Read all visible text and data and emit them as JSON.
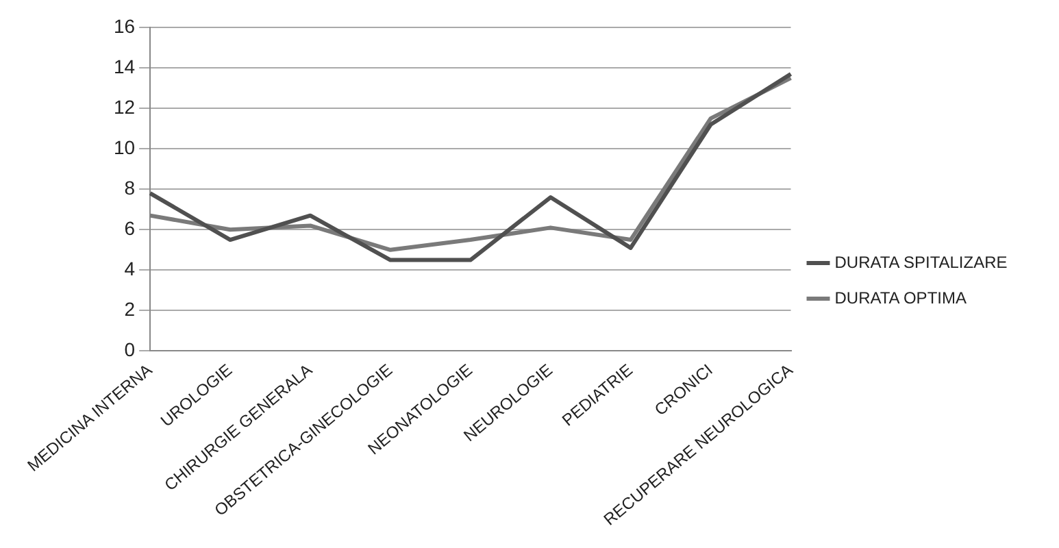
{
  "chart_data": {
    "type": "line",
    "categories": [
      "MEDICINA INTERNA",
      "UROLOGIE",
      "CHIRURGIE GENERALA",
      "OBSTETRICA-GINECOLOGIE",
      "NEONATOLOGIE",
      "NEUROLOGIE",
      "PEDIATRIE",
      "CRONICI",
      "RECUPERARE NEUROLOGICA"
    ],
    "series": [
      {
        "name": "DURATA SPITALIZARE",
        "color": "#505050",
        "values": [
          7.8,
          5.5,
          6.7,
          4.5,
          4.5,
          7.6,
          5.1,
          11.2,
          13.7
        ]
      },
      {
        "name": "DURATA OPTIMA",
        "color": "#7a7a7a",
        "values": [
          6.7,
          6.0,
          6.2,
          5.0,
          5.5,
          6.1,
          5.5,
          11.5,
          13.5
        ]
      }
    ],
    "ylim": [
      0,
      16
    ],
    "yticks": [
      0,
      2,
      4,
      6,
      8,
      10,
      12,
      14,
      16
    ],
    "grid": "y",
    "legend": "right",
    "marker": "none"
  }
}
